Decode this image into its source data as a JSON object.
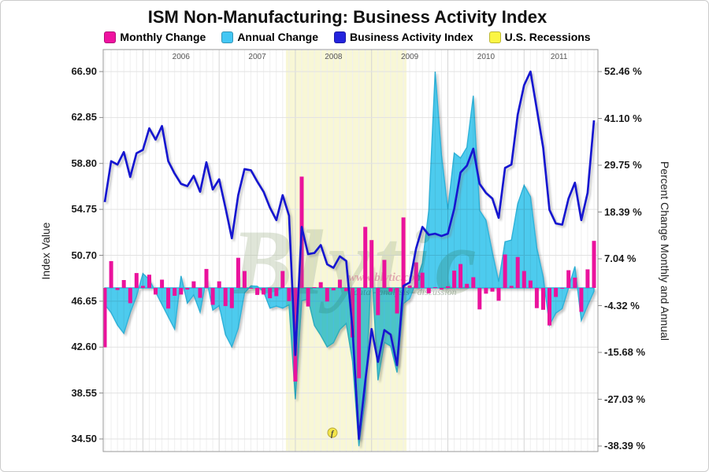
{
  "title": "ISM Non-Manufacturing: Business Activity Index",
  "legend": [
    {
      "label": "Monthly Change",
      "color": "#ef12a0"
    },
    {
      "label": "Annual Change",
      "color": "#43c7f4"
    },
    {
      "label": "Business Activity Index",
      "color": "#2323dd"
    },
    {
      "label": "U.S. Recessions",
      "color": "#fbf544"
    }
  ],
  "y_left_axis": {
    "title": "Index Value",
    "ticks": [
      "66.90",
      "62.85",
      "58.80",
      "54.75",
      "50.70",
      "46.65",
      "42.60",
      "38.55",
      "34.50"
    ]
  },
  "y_right_axis": {
    "title": "Percent Change Monthly and Annual",
    "ticks": [
      "52.46 %",
      "41.10 %",
      "29.75 %",
      "18.39 %",
      "7.04 %",
      "-4.32 %",
      "-15.68 %",
      "-27.03 %",
      "-38.39 %"
    ]
  },
  "x_axis": {
    "years": [
      "2006",
      "2007",
      "2008",
      "2009",
      "2010",
      "2011"
    ]
  },
  "watermark": {
    "brand": "Blytic",
    "url": "www.blytic.com",
    "tagline": "data - analysis - discussion",
    "logo_glyph": "f"
  },
  "chart_data": {
    "type": "composite",
    "start_month": "2005-07",
    "end_month": "2011-12",
    "left_axis_range": [
      34.5,
      66.9
    ],
    "right_axis_range_pct": [
      -38.39,
      52.46
    ],
    "recession_band": {
      "from": "2007-12",
      "to": "2009-06"
    },
    "series": [
      {
        "name": "Business Activity Index",
        "type": "line",
        "axis": "left",
        "color": "#1518d0",
        "values": [
          55.4,
          59.0,
          58.7,
          59.8,
          57.6,
          59.7,
          60.0,
          61.9,
          60.9,
          62.1,
          59.0,
          57.9,
          57.0,
          56.8,
          57.7,
          56.3,
          58.9,
          56.5,
          57.4,
          54.9,
          52.2,
          56.0,
          58.3,
          58.2,
          57.2,
          56.3,
          54.9,
          53.8,
          56.0,
          54.2,
          41.9,
          53.2,
          50.8,
          50.9,
          51.6,
          49.9,
          49.6,
          50.6,
          50.2,
          44.2,
          34.5,
          39.6,
          44.2,
          41.3,
          44.1,
          43.7,
          41.0,
          48.0,
          48.3,
          51.3,
          53.2,
          52.5,
          52.6,
          52.4,
          52.6,
          54.8,
          58.0,
          58.6,
          60.1,
          57.0,
          56.2,
          55.7,
          54.0,
          58.4,
          58.7,
          63.1,
          65.7,
          66.9,
          63.6,
          60.2,
          54.7,
          53.5,
          53.4,
          55.7,
          57.1,
          53.8,
          56.2,
          62.6
        ]
      },
      {
        "name": "Monthly Change",
        "type": "bar",
        "axis": "right",
        "color": "#ea129c",
        "values": [
          -14.4,
          6.5,
          -0.5,
          1.9,
          -3.7,
          3.6,
          0.5,
          3.2,
          -1.6,
          2.0,
          -5.0,
          -1.9,
          -1.6,
          -0.4,
          1.6,
          -2.4,
          4.6,
          -4.1,
          1.6,
          -4.4,
          -4.9,
          7.3,
          4.1,
          -0.2,
          -1.7,
          -1.6,
          -2.5,
          -2.0,
          4.1,
          -3.2,
          -22.7,
          27.0,
          -4.5,
          0.2,
          1.4,
          -3.3,
          -0.6,
          2.0,
          -0.8,
          -12.0,
          -21.9,
          14.8,
          11.6,
          -6.6,
          6.8,
          -0.9,
          -6.2,
          17.1,
          0.6,
          6.2,
          3.7,
          -1.3,
          0.2,
          -0.4,
          0.4,
          4.2,
          5.8,
          1.0,
          2.6,
          -5.2,
          -1.4,
          -0.9,
          -3.1,
          8.1,
          0.5,
          7.5,
          4.1,
          1.8,
          -4.9,
          -5.3,
          -9.1,
          -2.2,
          -0.2,
          4.3,
          2.5,
          -5.8,
          4.5,
          11.4
        ]
      },
      {
        "name": "Annual Change",
        "type": "area",
        "axis": "right",
        "color": "#4ecbee",
        "values": [
          -4.0,
          -6.0,
          -9.0,
          -11.0,
          -6.0,
          -2.0,
          3.5,
          2.0,
          -1.0,
          -4.0,
          -7.0,
          -10.0,
          2.9,
          -3.7,
          -1.7,
          -5.9,
          2.3,
          -5.4,
          -4.3,
          -11.3,
          -14.3,
          -9.8,
          -1.2,
          0.5,
          0.4,
          -0.9,
          -4.9,
          -4.4,
          -4.9,
          -4.1,
          -27.0,
          -3.1,
          -2.7,
          -9.1,
          -11.5,
          -14.3,
          -13.3,
          -10.1,
          -8.6,
          -17.8,
          -38.39,
          -26.9,
          5.5,
          -22.4,
          -13.2,
          -14.1,
          -20.5,
          -3.8,
          -2.6,
          1.4,
          6.0,
          18.8,
          52.46,
          32.3,
          19.0,
          32.7,
          31.5,
          34.1,
          46.6,
          18.8,
          16.4,
          8.6,
          1.5,
          11.2,
          11.6,
          20.4,
          24.9,
          22.1,
          9.7,
          2.7,
          -9.0,
          -6.1,
          -5.0,
          0.0,
          5.2,
          -7.9,
          -4.3,
          -0.8
        ]
      }
    ]
  }
}
